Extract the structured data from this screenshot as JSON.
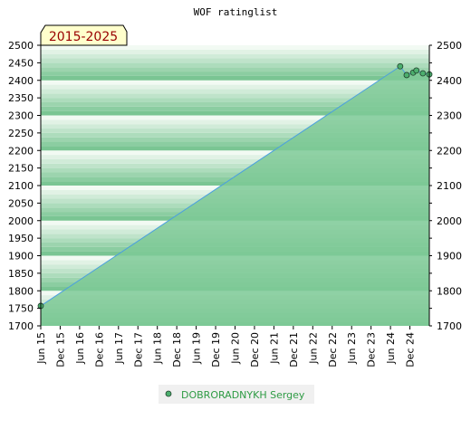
{
  "chart_data": {
    "type": "area",
    "title": "WOF ratinglist",
    "badge": "2015-2025",
    "xlabel": "",
    "ylabel": "",
    "ylim": [
      1700,
      2500
    ],
    "y_ticks": [
      1700,
      1750,
      1800,
      1850,
      1900,
      1950,
      2000,
      2050,
      2100,
      2150,
      2200,
      2250,
      2300,
      2350,
      2400,
      2450,
      2500
    ],
    "y_right_ticks": [
      1700,
      1800,
      1900,
      2000,
      2100,
      2200,
      2300,
      2400,
      2500
    ],
    "x_range": [
      "2015-06",
      "2025-06"
    ],
    "x_ticks": [
      {
        "date": "2015-06",
        "label": "Jun 15"
      },
      {
        "date": "2015-12",
        "label": "Dec 15"
      },
      {
        "date": "2016-06",
        "label": "Jun 16"
      },
      {
        "date": "2016-12",
        "label": "Dec 16"
      },
      {
        "date": "2017-06",
        "label": "Jun 17"
      },
      {
        "date": "2017-12",
        "label": "Dec 17"
      },
      {
        "date": "2018-06",
        "label": "Jun 18"
      },
      {
        "date": "2018-12",
        "label": "Dec 18"
      },
      {
        "date": "2019-06",
        "label": "Jun 19"
      },
      {
        "date": "2019-12",
        "label": "Dec 19"
      },
      {
        "date": "2020-06",
        "label": "Jun 20"
      },
      {
        "date": "2020-12",
        "label": "Dec 20"
      },
      {
        "date": "2021-06",
        "label": "Jun 21"
      },
      {
        "date": "2021-12",
        "label": "Dec 21"
      },
      {
        "date": "2022-06",
        "label": "Jun 22"
      },
      {
        "date": "2022-12",
        "label": "Dec 22"
      },
      {
        "date": "2023-06",
        "label": "Jun 23"
      },
      {
        "date": "2023-12",
        "label": "Dec 23"
      },
      {
        "date": "2024-06",
        "label": "Jun 24"
      },
      {
        "date": "2024-12",
        "label": "Dec 24"
      }
    ],
    "series": [
      {
        "name": "DOBRORADNYKH Sergey",
        "points": [
          {
            "date": "2015-06",
            "value": 1757
          },
          {
            "date": "2024-09",
            "value": 2440
          },
          {
            "date": "2024-11",
            "value": 2415
          },
          {
            "date": "2025-01",
            "value": 2422
          },
          {
            "date": "2025-02",
            "value": 2428
          },
          {
            "date": "2025-04",
            "value": 2420
          },
          {
            "date": "2025-06",
            "value": 2417
          }
        ]
      }
    ],
    "grid": true,
    "legend": "bottom",
    "colors": {
      "fill": "#7ec996",
      "line": "#4a9fe0",
      "marker": "#4caf6e",
      "band_dark": "#7ac593",
      "band_light": "#f2faf3",
      "legend_text": "#2e9b44",
      "badge_bg": "#ffffcc",
      "badge_text": "#990000"
    }
  }
}
